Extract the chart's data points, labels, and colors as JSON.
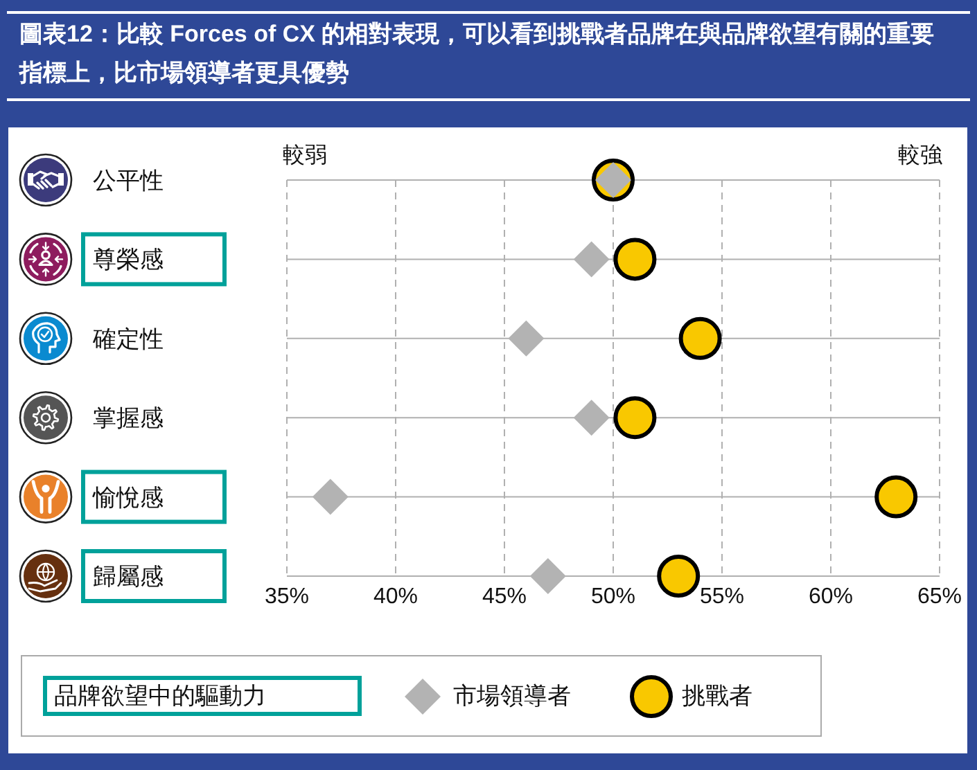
{
  "chart_data": {
    "type": "scatter",
    "orientation": "horizontal",
    "title": "圖表12：比較 Forces of CX 的相對表現，可以看到挑戰者品牌在與品牌欲望有關的重要指標上，比市場領導者更具優勢",
    "categories": [
      "公平性",
      "尊榮感",
      "確定性",
      "掌握感",
      "愉悅感",
      "歸屬感"
    ],
    "series": [
      {
        "name": "市場領導者",
        "color": "#b3b3b3",
        "marker": "diamond",
        "values": [
          50,
          49,
          46,
          49,
          37,
          47
        ]
      },
      {
        "name": "挑戰者",
        "color": "#f9c800",
        "marker": "circle",
        "values": [
          50,
          51,
          54,
          51,
          63,
          53
        ]
      }
    ],
    "xlim": [
      35,
      65
    ],
    "xticks": [
      {
        "value": 35,
        "label": "35%"
      },
      {
        "value": 40,
        "label": "40%"
      },
      {
        "value": 45,
        "label": "45%"
      },
      {
        "value": 50,
        "label": "50%"
      },
      {
        "value": 55,
        "label": "55%"
      },
      {
        "value": 60,
        "label": "60%"
      },
      {
        "value": 65,
        "label": "65%"
      }
    ],
    "grid": true,
    "legend": "bottom",
    "annotations": [
      "較弱",
      "較強",
      "品牌欲望中的驅動力"
    ]
  }
}
